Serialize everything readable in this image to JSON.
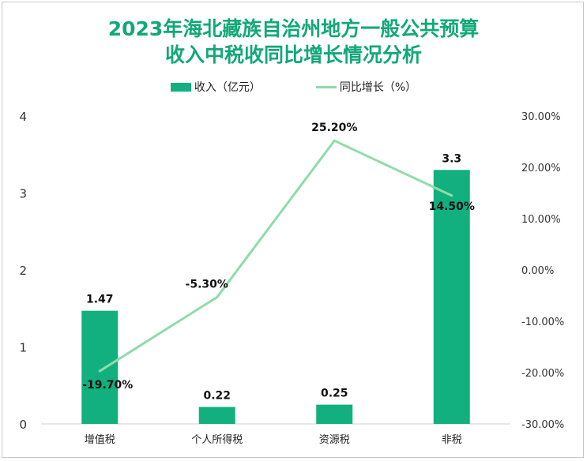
{
  "chart_data": {
    "type": "bar+line",
    "title": "2023年海北藏族自治州地方一般公共预算收入中税收同比增长情况分析",
    "title_lines": [
      "2023年海北藏族自治州地方一般公共预算",
      "收入中税收同比增长情况分析"
    ],
    "categories": [
      "增值税",
      "个人所得税",
      "资源税",
      "非税"
    ],
    "series": [
      {
        "name": "收入（亿元）",
        "type": "bar",
        "axis": "left",
        "values": [
          1.47,
          0.22,
          0.25,
          3.3
        ],
        "labels": [
          "1.47",
          "0.22",
          "0.25",
          "3.3"
        ],
        "color": "#12b07f"
      },
      {
        "name": "同比增长（%）",
        "type": "line",
        "axis": "right",
        "values": [
          -19.7,
          -5.3,
          25.2,
          14.5
        ],
        "labels": [
          "-19.70%",
          "-5.30%",
          "25.20%",
          "14.50%"
        ],
        "color": "#8fdca9"
      }
    ],
    "y_left": {
      "range": [
        0,
        4
      ],
      "ticks": [
        "0",
        "1",
        "2",
        "3",
        "4"
      ]
    },
    "y_right": {
      "range": [
        -30,
        30
      ],
      "ticks": [
        "-30.00%",
        "-20.00%",
        "-10.00%",
        "0.00%",
        "10.00%",
        "20.00%",
        "30.00%"
      ]
    },
    "grid": false,
    "legend_position": "top"
  }
}
